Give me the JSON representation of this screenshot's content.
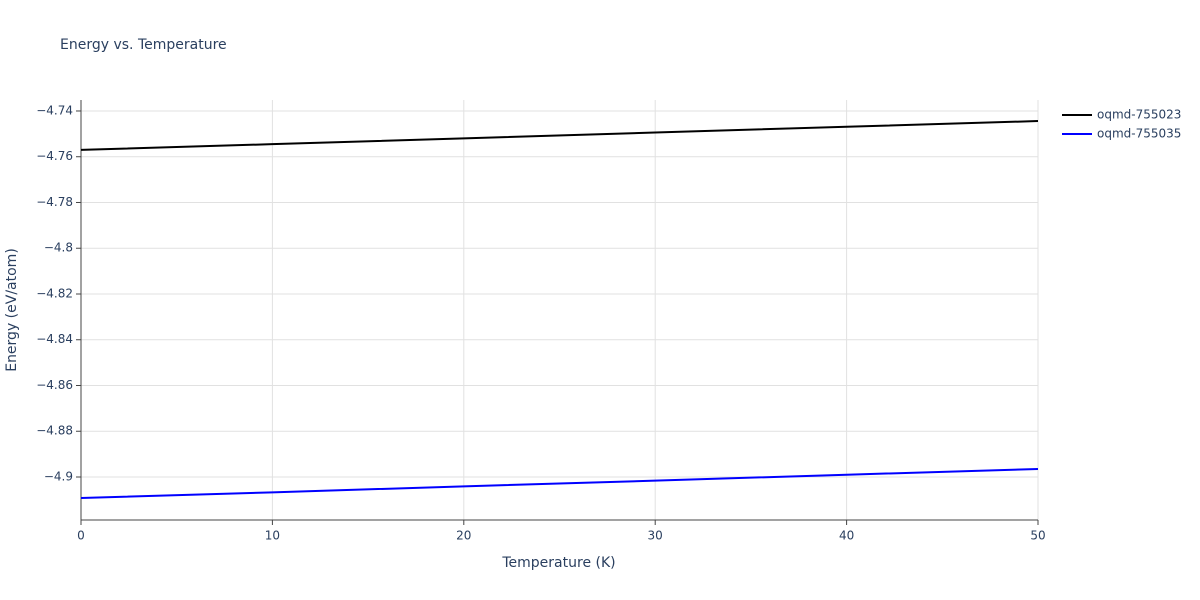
{
  "chart_data": {
    "type": "line",
    "title": "Energy vs. Temperature",
    "x_label": "Temperature (K)",
    "y_label": "Energy (eV/atom)",
    "x": [
      0,
      10,
      20,
      30,
      40,
      50
    ],
    "series": [
      {
        "name": "oqmd-755023",
        "color": "#000000",
        "values": [
          -4.757,
          -4.7545,
          -4.752,
          -4.7494,
          -4.7469,
          -4.7444
        ]
      },
      {
        "name": "oqmd-755035",
        "color": "#0000ff",
        "values": [
          -4.9092,
          -4.9067,
          -4.9041,
          -4.9016,
          -4.899,
          -4.8965
        ]
      }
    ],
    "xlim": [
      0,
      50
    ],
    "xticks": [
      0,
      10,
      20,
      30,
      40,
      50
    ],
    "ylim": [
      -4.9188,
      -4.7352
    ],
    "yticks": [
      {
        "value": -4.74,
        "label": "−4.74"
      },
      {
        "value": -4.76,
        "label": "−4.76"
      },
      {
        "value": -4.78,
        "label": "−4.78"
      },
      {
        "value": -4.8,
        "label": "−4.8"
      },
      {
        "value": -4.82,
        "label": "−4.82"
      },
      {
        "value": -4.84,
        "label": "−4.84"
      },
      {
        "value": -4.86,
        "label": "−4.86"
      },
      {
        "value": -4.88,
        "label": "−4.88"
      },
      {
        "value": -4.9,
        "label": "−4.9"
      }
    ],
    "grid": true,
    "legend": "outside-top-right"
  }
}
